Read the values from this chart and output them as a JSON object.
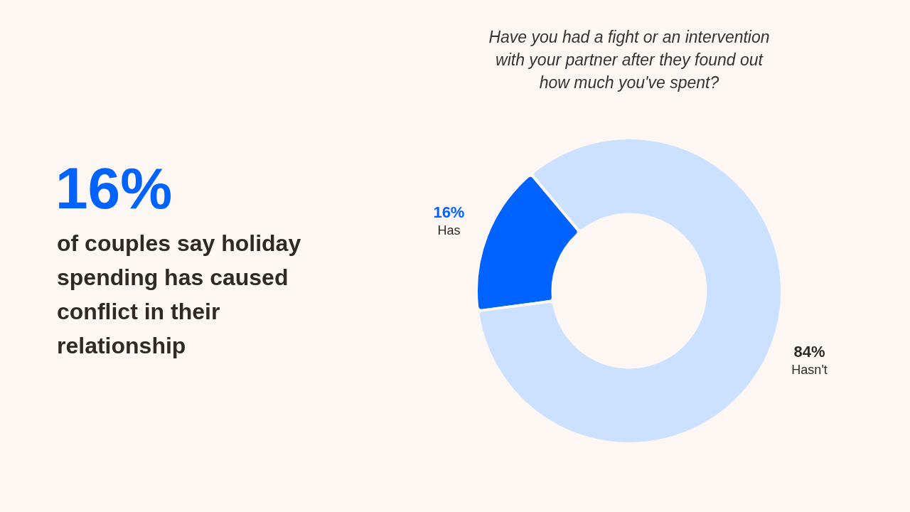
{
  "chart_data": {
    "type": "donut",
    "title": "Have you had a fight or an intervention with your partner after they found out how much you've spent?",
    "categories": [
      "Has",
      "Hasn't"
    ],
    "values": [
      16,
      84
    ],
    "colors": [
      "#0062ff",
      "#cce0ff"
    ],
    "value_labels": [
      "16%",
      "84%"
    ],
    "legend": false,
    "annotations": [
      "16%",
      "of couples say holiday spending has caused conflict in their relationship"
    ]
  }
}
